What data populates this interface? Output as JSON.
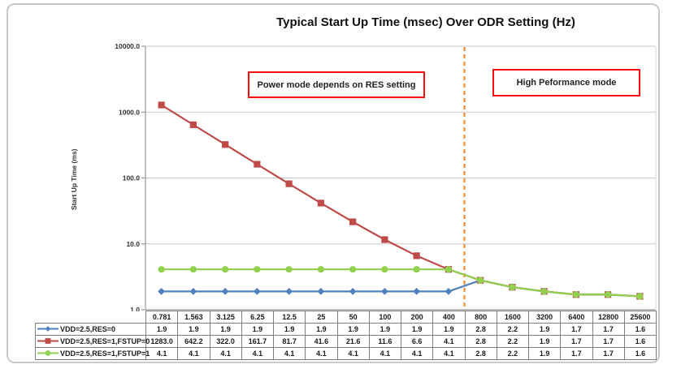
{
  "title": "Typical Start Up Time (msec) Over ODR Setting (Hz)",
  "chart_data": {
    "type": "line",
    "title": "Typical Start Up Time (msec) Over ODR Setting (Hz)",
    "xlabel": "",
    "ylabel": "Start Up Time (ms)",
    "y_scale": "log",
    "ylim": [
      1.0,
      10000.0
    ],
    "y_tick_labels": [
      "10000.0",
      "1000.0",
      "100.0",
      "10.0",
      "1.0"
    ],
    "grid": "horizontal",
    "legend_position": "table-left",
    "categories": [
      "0.781",
      "1.563",
      "3.125",
      "6.25",
      "12.5",
      "25",
      "50",
      "100",
      "200",
      "400",
      "800",
      "1600",
      "3200",
      "6400",
      "12800",
      "25600"
    ],
    "series": [
      {
        "name": "VDD=2.5,RES=0",
        "color": "#4e81bd",
        "marker": "diamond",
        "values": [
          "1.9",
          "1.9",
          "1.9",
          "1.9",
          "1.9",
          "1.9",
          "1.9",
          "1.9",
          "1.9",
          "1.9",
          "2.8",
          "2.2",
          "1.9",
          "1.7",
          "1.7",
          "1.6"
        ]
      },
      {
        "name": "VDD=2.5,RES=1,FSTUP=0",
        "color": "#be4b48",
        "marker": "square",
        "values": [
          "1283.0",
          "642.2",
          "322.0",
          "161.7",
          "81.7",
          "41.6",
          "21.6",
          "11.6",
          "6.6",
          "4.1",
          "2.8",
          "2.2",
          "1.9",
          "1.7",
          "1.7",
          "1.6"
        ]
      },
      {
        "name": "VDD=2.5,RES=1,FSTUP=1",
        "color": "#92d050",
        "marker": "circle",
        "values": [
          "4.1",
          "4.1",
          "4.1",
          "4.1",
          "4.1",
          "4.1",
          "4.1",
          "4.1",
          "4.1",
          "4.1",
          "2.8",
          "2.2",
          "1.9",
          "1.7",
          "1.7",
          "1.6"
        ]
      }
    ],
    "divider_line": {
      "between_categories": [
        "400",
        "800"
      ],
      "color": "#f79646",
      "style": "dashed"
    },
    "annotations": [
      {
        "label": "Power mode depends on RES setting"
      },
      {
        "label": "High Peformance mode"
      }
    ]
  },
  "colors": {
    "gridline": "#c8c8c8",
    "axis": "#9a9a9a",
    "annotation_border": "#ff0b0b",
    "table_border": "#7f7f7f"
  }
}
